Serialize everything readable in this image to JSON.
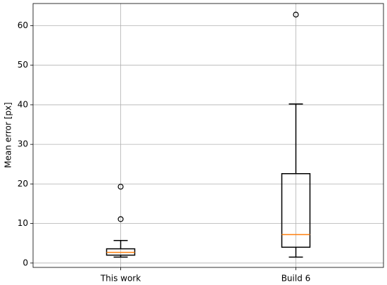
{
  "chart_data": {
    "type": "box",
    "ylabel": "Mean error [px]",
    "categories": [
      "This work",
      "Build 6"
    ],
    "boxes": [
      {
        "whislo": 1.5,
        "q1": 2.0,
        "med": 2.7,
        "q3": 3.6,
        "whishi": 5.7,
        "fliers": [
          11.1,
          19.3
        ]
      },
      {
        "whislo": 1.5,
        "q1": 4.0,
        "med": 7.2,
        "q3": 22.6,
        "whishi": 40.2,
        "fliers": [
          62.8
        ]
      }
    ],
    "color": "#000000",
    "median_color": "#ff7f0e",
    "ylim": [
      -1.1,
      65.6
    ],
    "yticks": [
      0,
      10,
      20,
      30,
      40,
      50,
      60
    ],
    "grid": true
  }
}
